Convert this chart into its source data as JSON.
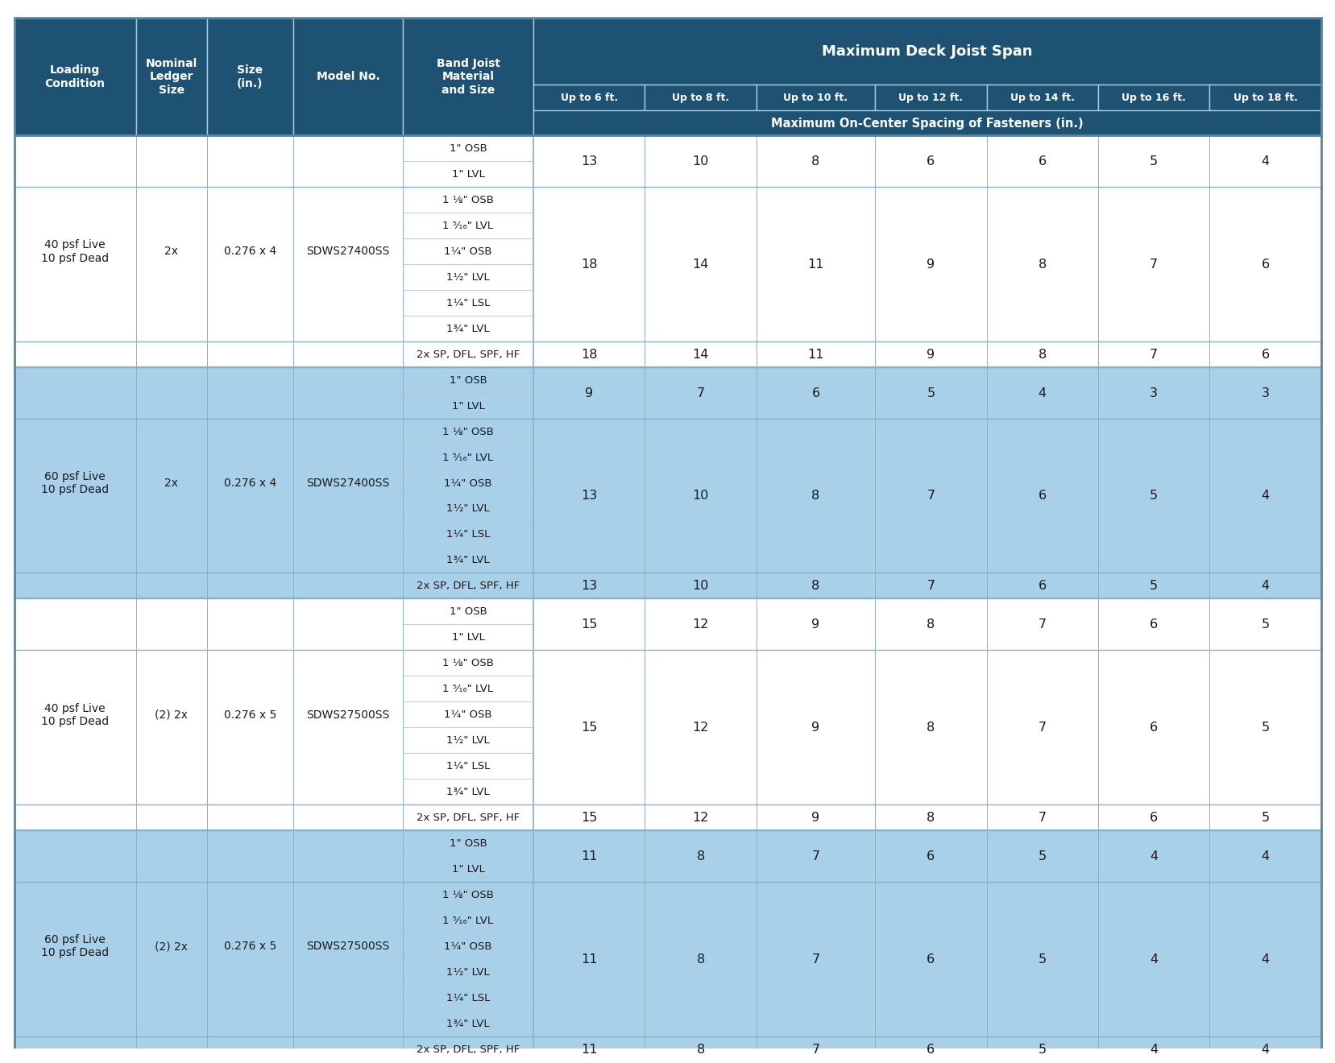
{
  "header_dark": "#1d5272",
  "row_white": "#ffffff",
  "row_blue": "#a8d0e8",
  "border_thin": "#b0c8d8",
  "border_group": "#8ab0c8",
  "border_section": "#5888a8",
  "header_text": "#ffffff",
  "data_text": "#1a1a1a",
  "col_headers_row2": [
    "Up to 6 ft.",
    "Up to 8 ft.",
    "Up to 10 ft.",
    "Up to 12 ft.",
    "Up to 14 ft.",
    "Up to 16 ft.",
    "Up to 18 ft."
  ],
  "col_headers_row3": "Maximum On-Center Spacing of Fasteners (in.)",
  "first5_headers": [
    "Loading\nCondition",
    "Nominal\nLedger\nSize",
    "Size\n(in.)",
    "Model No.",
    "Band Joist\nMaterial\nand Size"
  ],
  "max_span_label": "Maximum Deck Joist Span",
  "sections": [
    {
      "loading": "40 psf Live\n10 psf Dead",
      "ledger": "2x",
      "size": "0.276 x 4",
      "model": "SDWS27400SS",
      "bg": "white",
      "groups": [
        {
          "materials": [
            "1\" OSB",
            "1\" LVL"
          ],
          "values": [
            13,
            10,
            8,
            6,
            6,
            5,
            4
          ]
        },
        {
          "materials": [
            "1 ⅛\" OSB",
            "1 ⁵⁄₁₆\" LVL",
            "1¼\" OSB",
            "1½\" LVL",
            "1¼\" LSL",
            "1¾\" LVL"
          ],
          "values": [
            18,
            14,
            11,
            9,
            8,
            7,
            6
          ]
        },
        {
          "materials": [
            "2x SP, DFL, SPF, HF"
          ],
          "values": [
            18,
            14,
            11,
            9,
            8,
            7,
            6
          ]
        }
      ]
    },
    {
      "loading": "60 psf Live\n10 psf Dead",
      "ledger": "2x",
      "size": "0.276 x 4",
      "model": "SDWS27400SS",
      "bg": "blue",
      "groups": [
        {
          "materials": [
            "1\" OSB",
            "1\" LVL"
          ],
          "values": [
            9,
            7,
            6,
            5,
            4,
            3,
            3
          ]
        },
        {
          "materials": [
            "1 ⅛\" OSB",
            "1 ⁵⁄₁₆\" LVL",
            "1¼\" OSB",
            "1½\" LVL",
            "1¼\" LSL",
            "1¾\" LVL"
          ],
          "values": [
            13,
            10,
            8,
            7,
            6,
            5,
            4
          ]
        },
        {
          "materials": [
            "2x SP, DFL, SPF, HF"
          ],
          "values": [
            13,
            10,
            8,
            7,
            6,
            5,
            4
          ]
        }
      ]
    },
    {
      "loading": "40 psf Live\n10 psf Dead",
      "ledger": "(2) 2x",
      "size": "0.276 x 5",
      "model": "SDWS27500SS",
      "bg": "white",
      "groups": [
        {
          "materials": [
            "1\" OSB",
            "1\" LVL"
          ],
          "values": [
            15,
            12,
            9,
            8,
            7,
            6,
            5
          ]
        },
        {
          "materials": [
            "1 ⅛\" OSB",
            "1 ⁵⁄₁₆\" LVL",
            "1¼\" OSB",
            "1½\" LVL",
            "1¼\" LSL",
            "1¾\" LVL"
          ],
          "values": [
            15,
            12,
            9,
            8,
            7,
            6,
            5
          ]
        },
        {
          "materials": [
            "2x SP, DFL, SPF, HF"
          ],
          "values": [
            15,
            12,
            9,
            8,
            7,
            6,
            5
          ]
        }
      ]
    },
    {
      "loading": "60 psf Live\n10 psf Dead",
      "ledger": "(2) 2x",
      "size": "0.276 x 5",
      "model": "SDWS27500SS",
      "bg": "blue",
      "groups": [
        {
          "materials": [
            "1\" OSB",
            "1\" LVL"
          ],
          "values": [
            11,
            8,
            7,
            6,
            5,
            4,
            4
          ]
        },
        {
          "materials": [
            "1 ⅛\" OSB",
            "1 ⁵⁄₁₆\" LVL",
            "1¼\" OSB",
            "1½\" LVL",
            "1¼\" LSL",
            "1¾\" LVL"
          ],
          "values": [
            11,
            8,
            7,
            6,
            5,
            4,
            4
          ]
        },
        {
          "materials": [
            "2x SP, DFL, SPF, HF"
          ],
          "values": [
            11,
            8,
            7,
            6,
            5,
            4,
            4
          ]
        }
      ]
    }
  ]
}
